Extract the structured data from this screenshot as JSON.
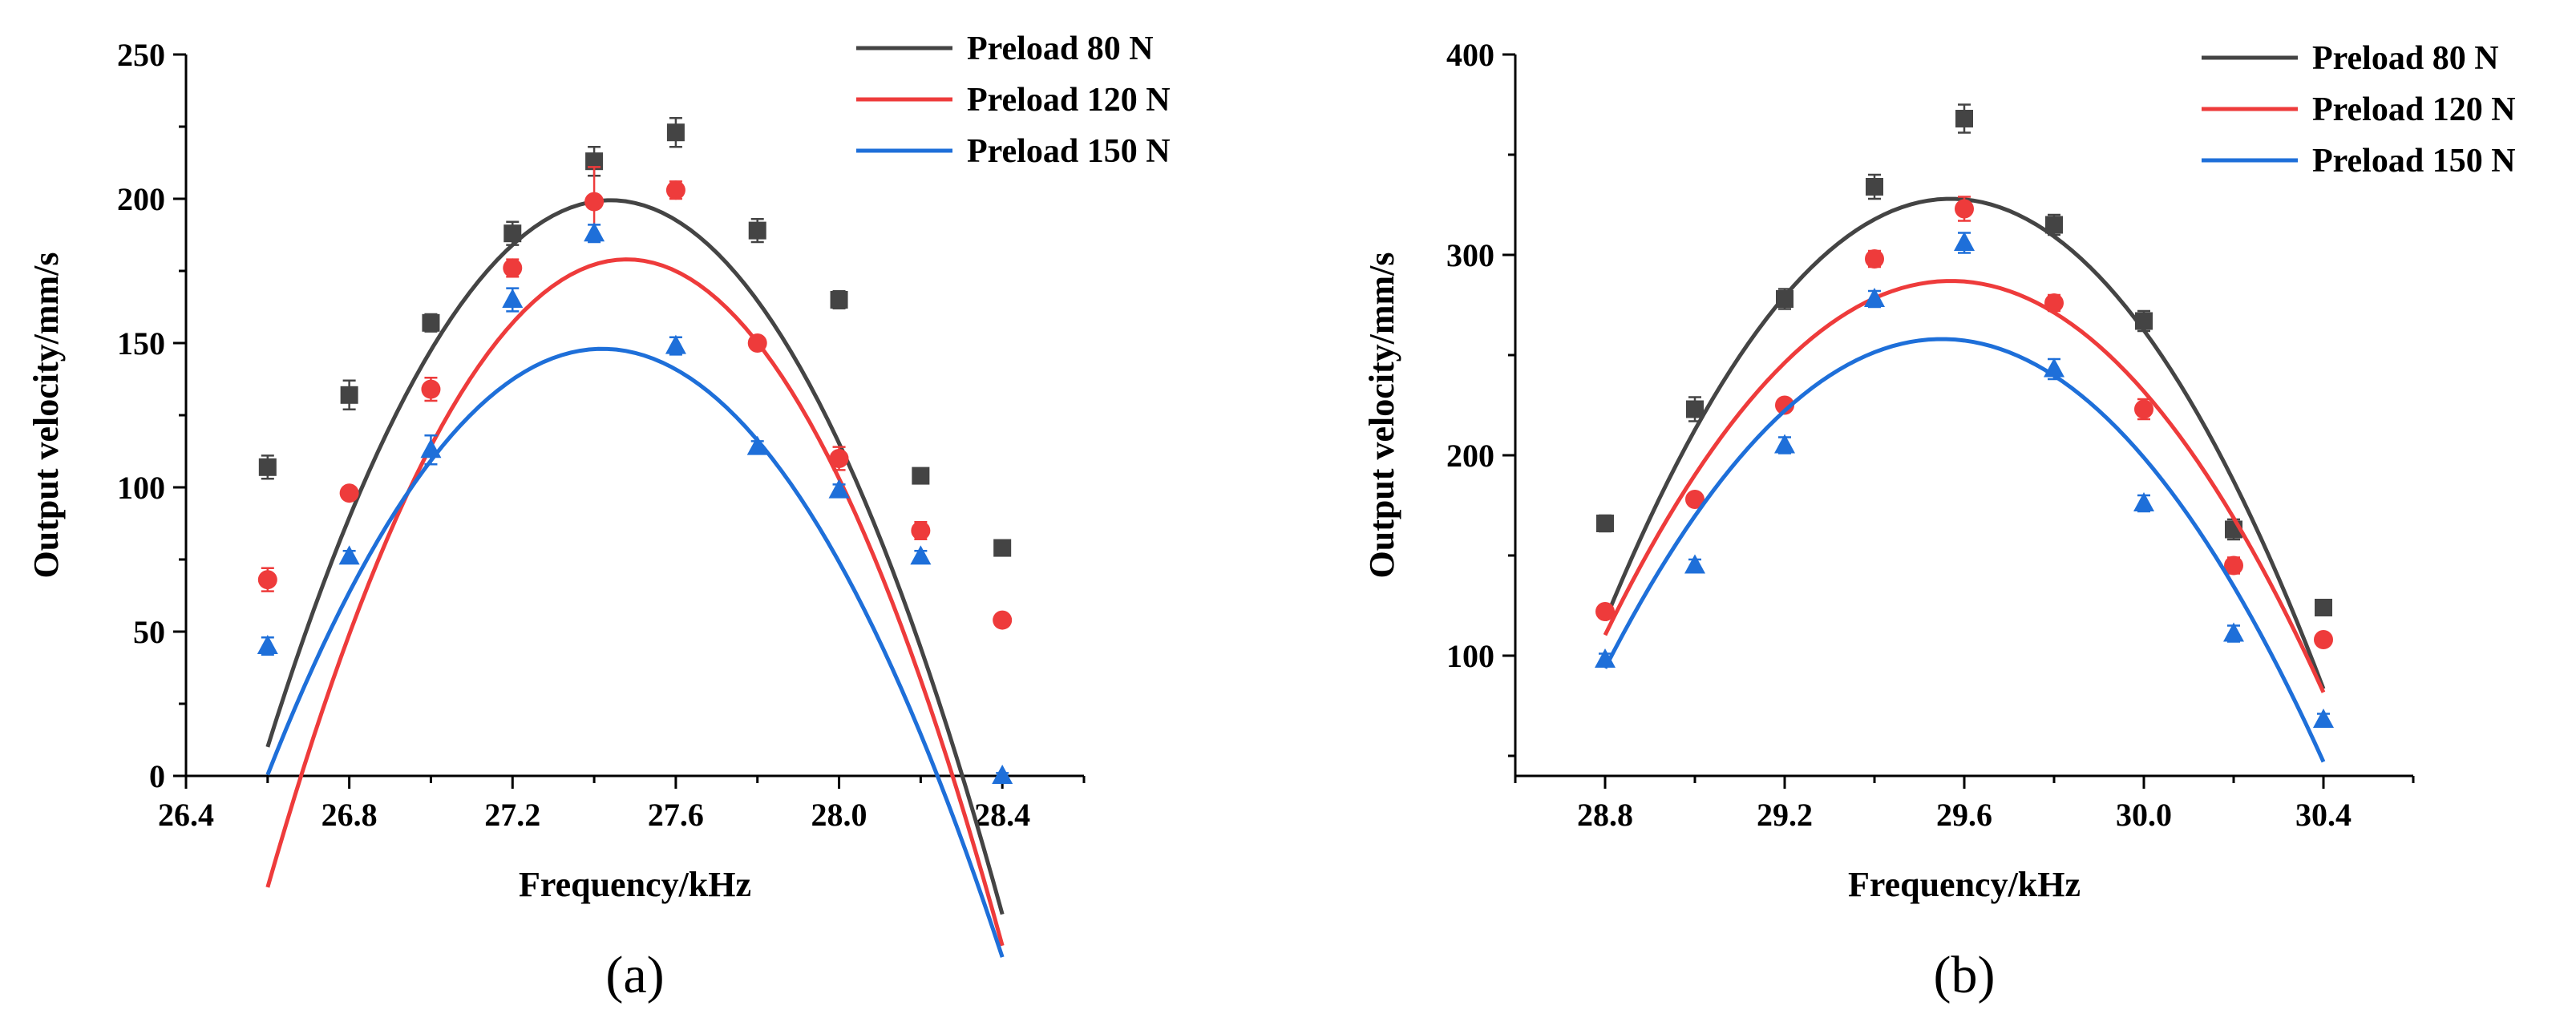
{
  "chart_data": [
    {
      "type": "scatter",
      "panel_label": "(a)",
      "xlabel": "Frequency/kHz",
      "ylabel": "Output velocity/mm/s",
      "xlim": [
        26.4,
        28.6
      ],
      "ylim": [
        0,
        250
      ],
      "xticks": [
        "26.4",
        "26.8",
        "27.2",
        "27.6",
        "28.0",
        "28.4"
      ],
      "yticks": [
        "0",
        "50",
        "100",
        "150",
        "200",
        "250"
      ],
      "legend_position": "top-right",
      "series": [
        {
          "name": "Preload 80 N",
          "color": "#444444",
          "marker": "square",
          "x": [
            26.6,
            26.8,
            27.0,
            27.2,
            27.4,
            27.6,
            27.8,
            28.0,
            28.2,
            28.4
          ],
          "values": [
            107,
            132,
            157,
            188,
            213,
            223,
            189,
            165,
            104,
            79
          ],
          "errors": [
            4,
            5,
            3,
            4,
            5,
            5,
            4,
            3,
            2,
            2
          ],
          "fit": {
            "a": -268.5,
            "h": 27.44,
            "k": 199.5
          }
        },
        {
          "name": "Preload 120 N",
          "color": "#ee3b3b",
          "marker": "circle",
          "x": [
            26.6,
            26.8,
            27.0,
            27.2,
            27.4,
            27.6,
            27.8,
            28.0,
            28.2,
            28.4
          ],
          "values": [
            68,
            98,
            134,
            176,
            199,
            203,
            150,
            110,
            85,
            54
          ],
          "errors": [
            4,
            2,
            4,
            3,
            12,
            3,
            2,
            4,
            3,
            2
          ],
          "fit": {
            "a": -281.0,
            "h": 27.48,
            "k": 179
          }
        },
        {
          "name": "Preload 150 N",
          "color": "#1e6fd9",
          "marker": "triangle",
          "x": [
            26.6,
            26.8,
            27.0,
            27.2,
            27.4,
            27.6,
            27.8,
            28.0,
            28.2,
            28.4
          ],
          "values": [
            45,
            76,
            113,
            165,
            188,
            149,
            114,
            99,
            76,
            0
          ],
          "errors": [
            3,
            2,
            5,
            4,
            3,
            3,
            2,
            2,
            2,
            1
          ],
          "fit": {
            "a": -219.5,
            "h": 27.42,
            "k": 148
          }
        }
      ]
    },
    {
      "type": "scatter",
      "panel_label": "(b)",
      "xlabel": "Frequency/kHz",
      "ylabel": "Output velocity/mm/s",
      "xlim": [
        28.6,
        30.6
      ],
      "ylim": [
        40,
        400
      ],
      "xticks": [
        "28.8",
        "29.2",
        "29.6",
        "30.0",
        "30.4"
      ],
      "yticks": [
        "100",
        "200",
        "300",
        "400"
      ],
      "legend_position": "top-right",
      "series": [
        {
          "name": "Preload 80 N",
          "color": "#444444",
          "marker": "square",
          "x": [
            28.8,
            29.0,
            29.2,
            29.4,
            29.6,
            29.8,
            30.0,
            30.2,
            30.4
          ],
          "values": [
            166,
            223,
            278,
            334,
            368,
            315,
            267,
            163,
            124
          ],
          "errors": [
            4,
            6,
            5,
            6,
            7,
            5,
            5,
            5,
            3
          ],
          "fit": {
            "a": -355,
            "h": 29.57,
            "k": 328
          }
        },
        {
          "name": "Preload 120 N",
          "color": "#ee3b3b",
          "marker": "circle",
          "x": [
            28.8,
            29.0,
            29.2,
            29.4,
            29.6,
            29.8,
            30.0,
            30.2,
            30.4
          ],
          "values": [
            122,
            178,
            225,
            298,
            323,
            276,
            223,
            145,
            108
          ],
          "errors": [
            3,
            3,
            3,
            4,
            6,
            4,
            5,
            4,
            3
          ],
          "fit": {
            "a": -298,
            "h": 29.57,
            "k": 287
          }
        },
        {
          "name": "Preload 150 N",
          "color": "#1e6fd9",
          "marker": "triangle",
          "x": [
            28.8,
            29.0,
            29.2,
            29.4,
            29.6,
            29.8,
            30.0,
            30.2,
            30.4
          ],
          "values": [
            98,
            145,
            205,
            278,
            306,
            243,
            176,
            111,
            68
          ],
          "errors": [
            3,
            3,
            4,
            4,
            5,
            5,
            4,
            4,
            3
          ],
          "fit": {
            "a": -292,
            "h": 29.55,
            "k": 258
          }
        }
      ]
    }
  ]
}
